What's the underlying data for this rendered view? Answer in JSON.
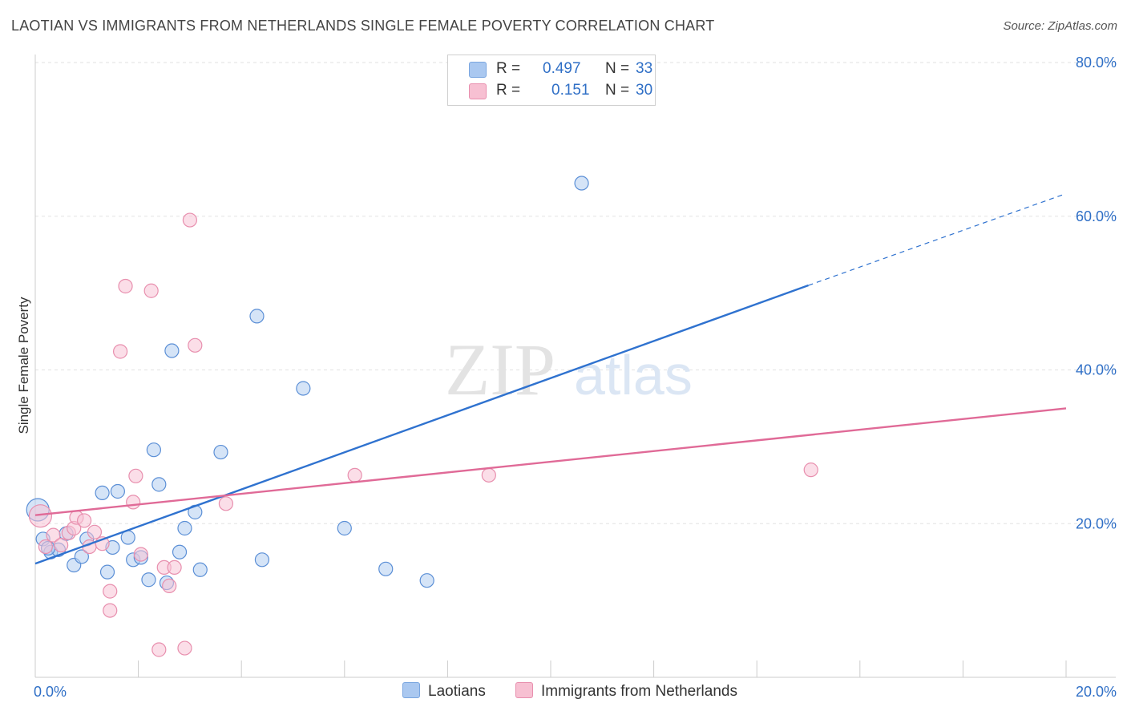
{
  "title": "LAOTIAN VS IMMIGRANTS FROM NETHERLANDS SINGLE FEMALE POVERTY CORRELATION CHART",
  "source": "Source: ZipAtlas.com",
  "watermark": {
    "zip": "ZIP",
    "atlas": "atlas"
  },
  "legend": {
    "r_label": "R =",
    "n_label": "N =",
    "series": [
      {
        "r": "0.497",
        "n": "33",
        "color": "#aac8f0",
        "border": "#7aa6e0"
      },
      {
        "r": "0.151",
        "n": "30",
        "color": "#f7c0d2",
        "border": "#e88fae"
      }
    ]
  },
  "chart_data": {
    "type": "scatter",
    "title": "LAOTIAN VS IMMIGRANTS FROM NETHERLANDS SINGLE FEMALE POVERTY CORRELATION CHART",
    "xlabel": "",
    "ylabel": "Single Female Poverty",
    "xlim": [
      0,
      20
    ],
    "ylim": [
      0,
      80
    ],
    "x_tick_labels": [
      "0.0%",
      "20.0%"
    ],
    "y_tick_values": [
      20,
      40,
      60,
      80
    ],
    "y_tick_labels": [
      "20.0%",
      "40.0%",
      "60.0%",
      "80.0%"
    ],
    "grid": true,
    "legend_position": "bottom",
    "series": [
      {
        "name": "Laotians",
        "color": "#5b8fd6",
        "fill": "#b3cdf0",
        "trend": {
          "x0": 0,
          "y0": 14.8,
          "x1": 15.0,
          "y1": 51.0,
          "dash_to_x": 20,
          "dash_to_y": 62.8,
          "color": "#2f72cf"
        },
        "points": [
          [
            0.05,
            21.8
          ],
          [
            0.15,
            18.0
          ],
          [
            0.3,
            16.3
          ],
          [
            0.45,
            16.6
          ],
          [
            0.6,
            18.7
          ],
          [
            0.75,
            14.6
          ],
          [
            0.9,
            15.7
          ],
          [
            1.0,
            18.0
          ],
          [
            1.3,
            24.0
          ],
          [
            1.4,
            13.7
          ],
          [
            1.5,
            16.9
          ],
          [
            1.6,
            24.2
          ],
          [
            1.8,
            18.2
          ],
          [
            1.9,
            15.3
          ],
          [
            2.05,
            15.6
          ],
          [
            2.2,
            12.7
          ],
          [
            2.3,
            29.6
          ],
          [
            2.4,
            25.1
          ],
          [
            2.55,
            12.3
          ],
          [
            2.65,
            42.5
          ],
          [
            2.8,
            16.3
          ],
          [
            2.9,
            19.4
          ],
          [
            3.1,
            21.5
          ],
          [
            3.2,
            14.0
          ],
          [
            3.6,
            29.3
          ],
          [
            4.3,
            47.0
          ],
          [
            4.4,
            15.3
          ],
          [
            5.2,
            37.6
          ],
          [
            6.0,
            19.4
          ],
          [
            6.8,
            14.1
          ],
          [
            7.6,
            12.6
          ],
          [
            10.6,
            64.3
          ],
          [
            0.25,
            16.8
          ]
        ]
      },
      {
        "name": "Immigrants from Netherlands",
        "color": "#e88fae",
        "fill": "#f7c3d5",
        "trend": {
          "x0": 0,
          "y0": 21.1,
          "x1": 20,
          "y1": 35.0,
          "color": "#e06a97"
        },
        "points": [
          [
            0.1,
            21.0
          ],
          [
            0.2,
            17.0
          ],
          [
            0.35,
            18.5
          ],
          [
            0.5,
            17.2
          ],
          [
            0.65,
            18.8
          ],
          [
            0.75,
            19.4
          ],
          [
            0.8,
            20.8
          ],
          [
            0.95,
            20.4
          ],
          [
            1.05,
            17.0
          ],
          [
            1.15,
            18.9
          ],
          [
            1.3,
            17.4
          ],
          [
            1.45,
            11.2
          ],
          [
            1.45,
            8.7
          ],
          [
            1.65,
            42.4
          ],
          [
            1.75,
            50.9
          ],
          [
            1.9,
            22.8
          ],
          [
            1.95,
            26.2
          ],
          [
            2.05,
            16.0
          ],
          [
            2.25,
            50.3
          ],
          [
            2.4,
            3.6
          ],
          [
            2.5,
            14.3
          ],
          [
            2.6,
            11.9
          ],
          [
            2.7,
            14.3
          ],
          [
            2.9,
            3.8
          ],
          [
            3.0,
            59.5
          ],
          [
            3.1,
            43.2
          ],
          [
            3.7,
            22.6
          ],
          [
            6.2,
            26.3
          ],
          [
            8.8,
            26.3
          ],
          [
            15.05,
            27.0
          ]
        ]
      }
    ]
  }
}
